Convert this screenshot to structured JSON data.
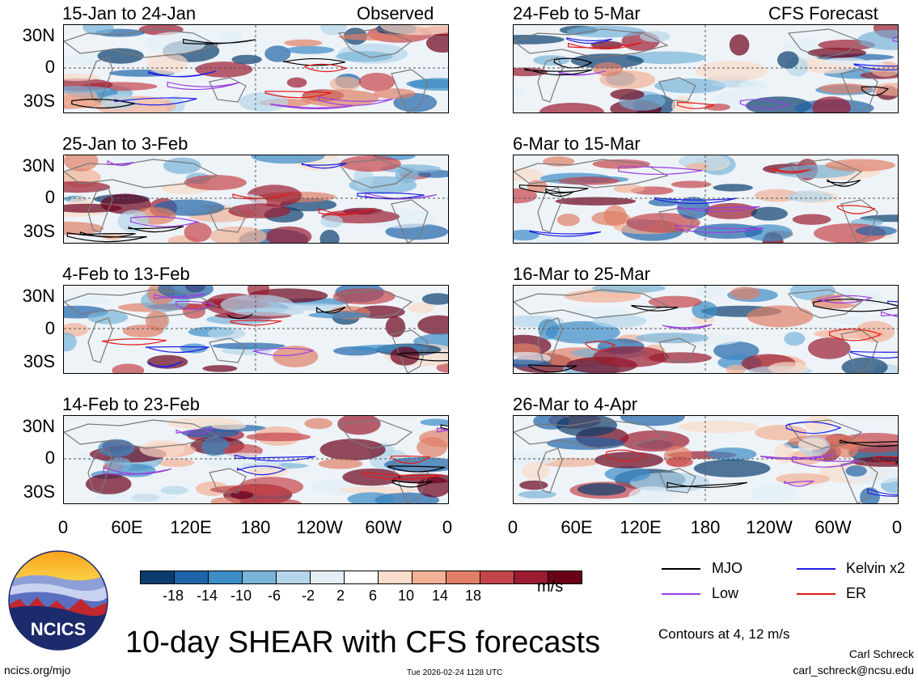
{
  "panels": {
    "left": [
      {
        "title": "15-Jan to 24-Jan",
        "tag": "Observed"
      },
      {
        "title": "25-Jan to 3-Feb",
        "tag": ""
      },
      {
        "title": "4-Feb to 13-Feb",
        "tag": ""
      },
      {
        "title": "14-Feb to 23-Feb",
        "tag": ""
      }
    ],
    "right": [
      {
        "title": "24-Feb to 5-Mar",
        "tag": "CFS Forecast"
      },
      {
        "title": "6-Mar to 15-Mar",
        "tag": ""
      },
      {
        "title": "16-Mar to 25-Mar",
        "tag": ""
      },
      {
        "title": "26-Mar to 4-Apr",
        "tag": ""
      }
    ]
  },
  "lat_labels": [
    "30N",
    "0",
    "30S"
  ],
  "lon_labels": [
    "0",
    "60E",
    "120E",
    "180",
    "120W",
    "60W",
    "0"
  ],
  "colorbar": {
    "labels": [
      "-18",
      "-14",
      "-10",
      "-6",
      "-2",
      "2",
      "6",
      "10",
      "14",
      "18"
    ],
    "colors": [
      "#0a3d6e",
      "#1f64a8",
      "#3c8cc6",
      "#79b3d9",
      "#b5d5ea",
      "#e3eef7",
      "#ffffff",
      "#f9dcc9",
      "#f2b196",
      "#e07f66",
      "#c4454a",
      "#9b1b31",
      "#6b0019"
    ],
    "unit": "m/s"
  },
  "legend": [
    {
      "label": "MJO",
      "color": "#000000"
    },
    {
      "label": "Kelvin x2",
      "color": "#1e1ee6"
    },
    {
      "label": "Low",
      "color": "#9b3fe0"
    },
    {
      "label": "ER",
      "color": "#e11a1a"
    }
  ],
  "logo_text": "NCICS",
  "main_title": "10-day SHEAR with CFS forecasts",
  "contours_note": "Contours at 4, 12 m/s",
  "author": "Carl Schreck",
  "email": "carl_schreck@ncsu.edu",
  "url": "ncics.org/mjo",
  "timestamp": "Tue 2026-02-24 1128 UTC"
}
